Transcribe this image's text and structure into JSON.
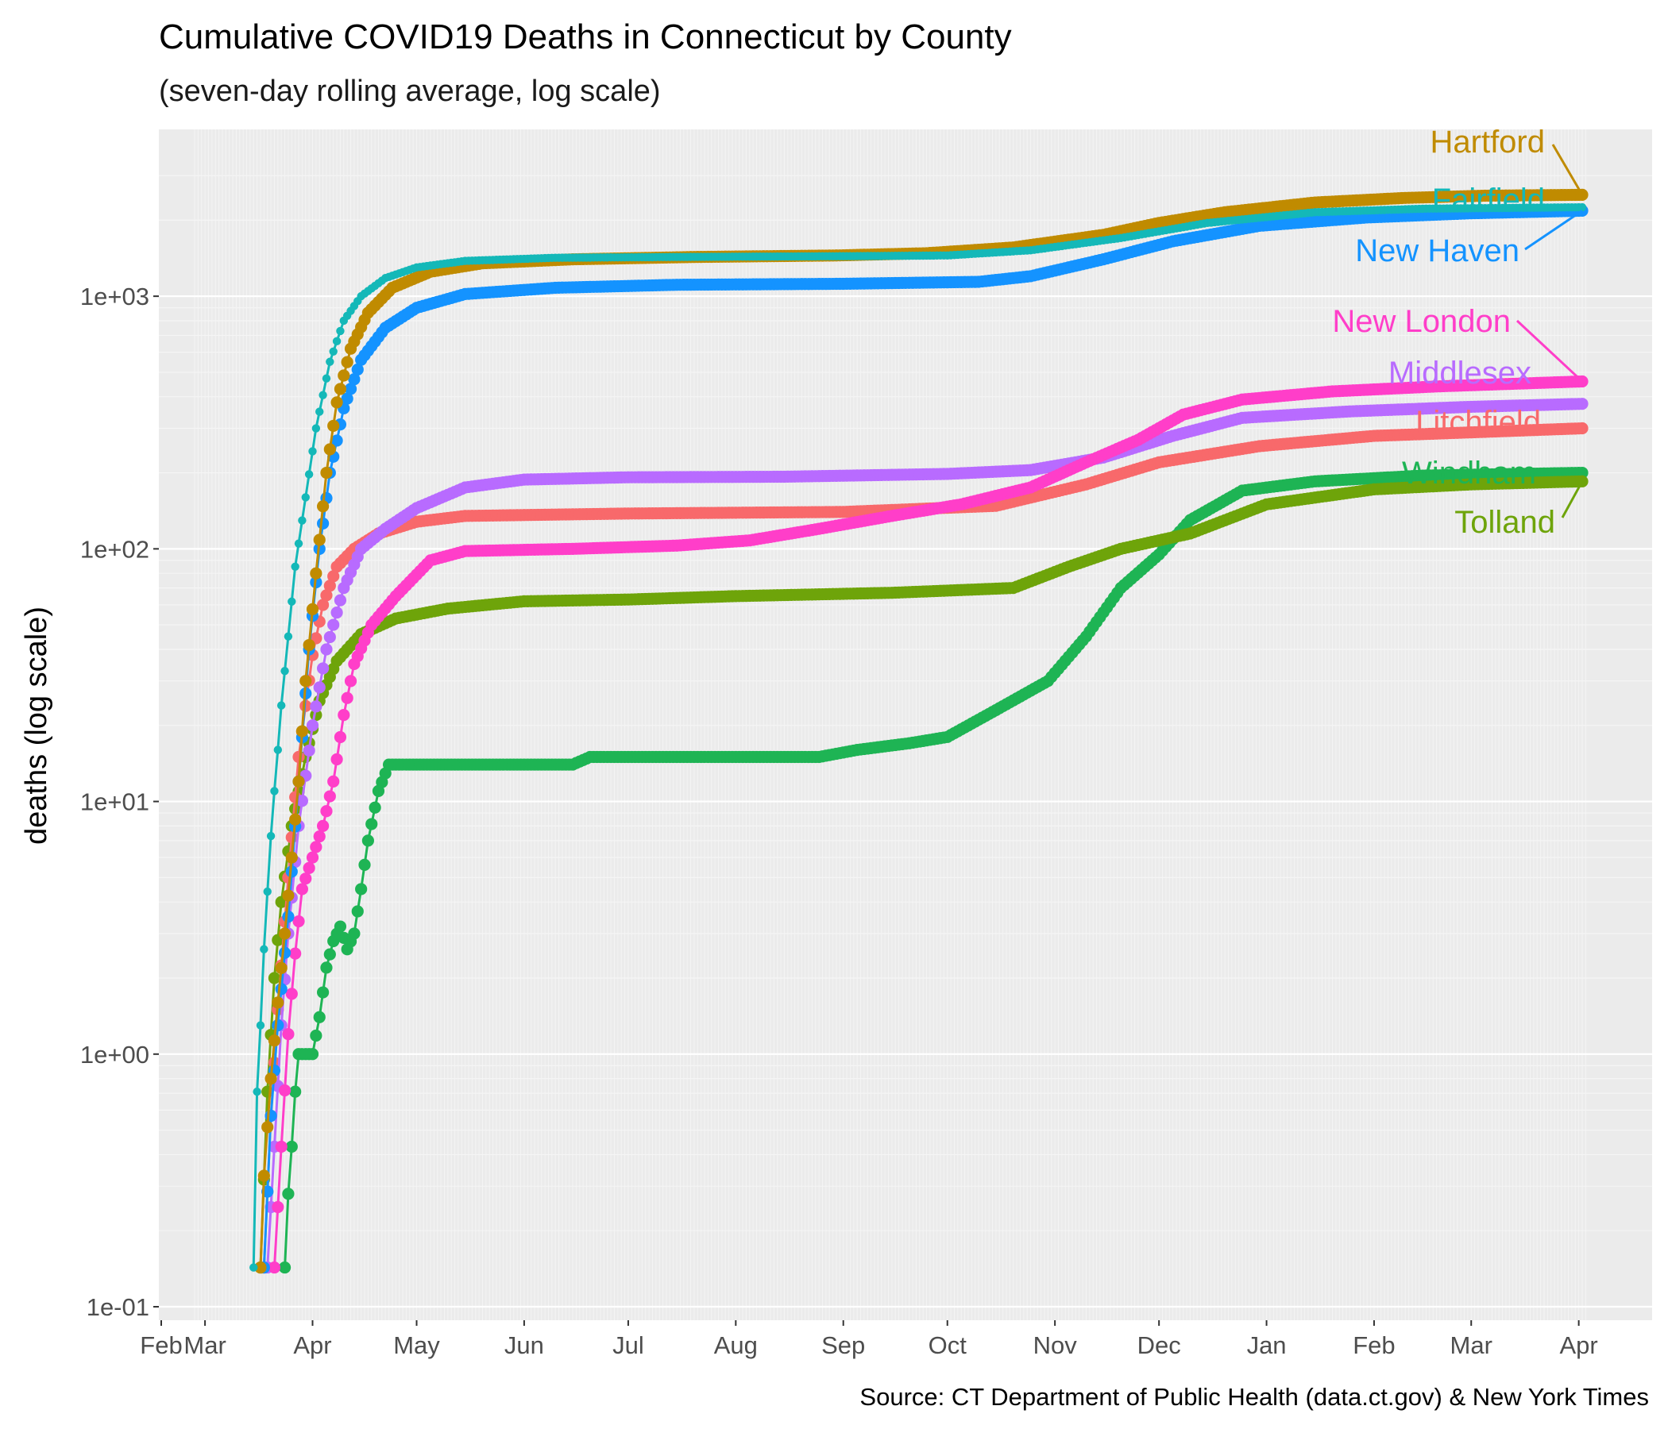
{
  "chart_data": {
    "type": "line",
    "title": "Cumulative COVID19 Deaths in Connecticut by County",
    "subtitle": "(seven-day rolling average, log scale)",
    "xlabel": "",
    "ylabel": "deaths (log scale)",
    "caption": "Source: CT Department of Public Health (data.ct.gov) & New York Times",
    "y_scale": "log10",
    "ylim": [
      0.1,
      3500
    ],
    "y_ticks": [
      "1e-01",
      "1e+00",
      "1e+01",
      "1e+02",
      "1e+03"
    ],
    "y_tick_values": [
      0.1,
      1,
      10,
      100,
      1000
    ],
    "x_range": [
      "2020-02-27",
      "2021-04-02"
    ],
    "x_tick_labels": [
      "Feb",
      "Mar",
      "Apr",
      "May",
      "Jun",
      "Jul",
      "Aug",
      "Sep",
      "Oct",
      "Nov",
      "Dec",
      "Jan",
      "Feb",
      "Mar",
      "Apr"
    ],
    "grid": true,
    "legend": "direct labels at right end",
    "series": [
      {
        "name": "Hartford",
        "color": "#C08B00",
        "marker_size": "large",
        "points": [
          [
            "2020-03-17",
            0.143
          ],
          [
            "2020-03-18",
            0.33
          ],
          [
            "2020-03-20",
            0.8
          ],
          [
            "2020-03-22",
            1.6
          ],
          [
            "2020-03-24",
            3.0
          ],
          [
            "2020-03-26",
            6.0
          ],
          [
            "2020-03-28",
            12
          ],
          [
            "2020-03-30",
            30
          ],
          [
            "2020-04-02",
            80
          ],
          [
            "2020-04-05",
            200
          ],
          [
            "2020-04-08",
            380
          ],
          [
            "2020-04-12",
            620
          ],
          [
            "2020-04-17",
            860
          ],
          [
            "2020-04-24",
            1080
          ],
          [
            "2020-05-05",
            1250
          ],
          [
            "2020-05-20",
            1350
          ],
          [
            "2020-06-15",
            1400
          ],
          [
            "2020-07-20",
            1430
          ],
          [
            "2020-08-30",
            1450
          ],
          [
            "2020-09-25",
            1480
          ],
          [
            "2020-10-20",
            1560
          ],
          [
            "2020-11-15",
            1750
          ],
          [
            "2020-12-01",
            1950
          ],
          [
            "2020-12-20",
            2150
          ],
          [
            "2021-01-15",
            2350
          ],
          [
            "2021-02-10",
            2450
          ],
          [
            "2021-03-05",
            2500
          ],
          [
            "2021-04-02",
            2520
          ]
        ]
      },
      {
        "name": "Fairfield",
        "color": "#14B8B8",
        "marker_size": "small",
        "points": [
          [
            "2020-03-15",
            0.143
          ],
          [
            "2020-03-16",
            0.71
          ],
          [
            "2020-03-17",
            1.3
          ],
          [
            "2020-03-18",
            2.6
          ],
          [
            "2020-03-19",
            4.4
          ],
          [
            "2020-03-20",
            7.3
          ],
          [
            "2020-03-21",
            11
          ],
          [
            "2020-03-22",
            16
          ],
          [
            "2020-03-23",
            24
          ],
          [
            "2020-03-25",
            45
          ],
          [
            "2020-03-27",
            85
          ],
          [
            "2020-03-30",
            160
          ],
          [
            "2020-04-02",
            300
          ],
          [
            "2020-04-06",
            550
          ],
          [
            "2020-04-10",
            800
          ],
          [
            "2020-04-15",
            1000
          ],
          [
            "2020-04-22",
            1180
          ],
          [
            "2020-05-01",
            1300
          ],
          [
            "2020-05-15",
            1380
          ],
          [
            "2020-06-10",
            1420
          ],
          [
            "2020-07-15",
            1430
          ],
          [
            "2020-09-01",
            1440
          ],
          [
            "2020-10-01",
            1450
          ],
          [
            "2020-10-25",
            1520
          ],
          [
            "2020-11-20",
            1700
          ],
          [
            "2020-12-15",
            1950
          ],
          [
            "2021-01-15",
            2150
          ],
          [
            "2021-02-15",
            2220
          ],
          [
            "2021-04-02",
            2250
          ]
        ]
      },
      {
        "name": "New Haven",
        "color": "#1493FF",
        "marker_size": "large",
        "points": [
          [
            "2020-03-18",
            0.143
          ],
          [
            "2020-03-20",
            0.57
          ],
          [
            "2020-03-22",
            1.3
          ],
          [
            "2020-03-25",
            3.5
          ],
          [
            "2020-03-28",
            12
          ],
          [
            "2020-03-31",
            40
          ],
          [
            "2020-04-03",
            100
          ],
          [
            "2020-04-06",
            200
          ],
          [
            "2020-04-10",
            360
          ],
          [
            "2020-04-15",
            560
          ],
          [
            "2020-04-22",
            750
          ],
          [
            "2020-05-01",
            900
          ],
          [
            "2020-05-15",
            1020
          ],
          [
            "2020-06-10",
            1080
          ],
          [
            "2020-07-15",
            1110
          ],
          [
            "2020-09-01",
            1120
          ],
          [
            "2020-10-10",
            1140
          ],
          [
            "2020-10-25",
            1200
          ],
          [
            "2020-11-15",
            1400
          ],
          [
            "2020-12-05",
            1650
          ],
          [
            "2020-12-30",
            1900
          ],
          [
            "2021-01-30",
            2050
          ],
          [
            "2021-03-01",
            2130
          ],
          [
            "2021-04-02",
            2180
          ]
        ]
      },
      {
        "name": "New London",
        "color": "#FF3EC9",
        "marker_size": "large",
        "points": [
          [
            "2020-03-21",
            0.143
          ],
          [
            "2020-03-23",
            0.43
          ],
          [
            "2020-03-25",
            1.2
          ],
          [
            "2020-03-27",
            2.5
          ],
          [
            "2020-03-29",
            4.5
          ],
          [
            "2020-04-01",
            6.0
          ],
          [
            "2020-04-04",
            8.0
          ],
          [
            "2020-04-07",
            12
          ],
          [
            "2020-04-10",
            22
          ],
          [
            "2020-04-13",
            35
          ],
          [
            "2020-04-18",
            50
          ],
          [
            "2020-04-25",
            65
          ],
          [
            "2020-05-05",
            90
          ],
          [
            "2020-05-15",
            98
          ],
          [
            "2020-06-15",
            100
          ],
          [
            "2020-07-15",
            103
          ],
          [
            "2020-08-05",
            108
          ],
          [
            "2020-08-25",
            120
          ],
          [
            "2020-09-15",
            135
          ],
          [
            "2020-10-05",
            150
          ],
          [
            "2020-10-25",
            175
          ],
          [
            "2020-11-10",
            220
          ],
          [
            "2020-11-25",
            270
          ],
          [
            "2020-12-08",
            340
          ],
          [
            "2020-12-25",
            390
          ],
          [
            "2021-01-20",
            420
          ],
          [
            "2021-02-20",
            440
          ],
          [
            "2021-04-02",
            460
          ]
        ]
      },
      {
        "name": "Middlesex",
        "color": "#B86BFF",
        "marker_size": "large",
        "points": [
          [
            "2020-03-19",
            0.143
          ],
          [
            "2020-03-21",
            0.43
          ],
          [
            "2020-03-23",
            1.3
          ],
          [
            "2020-03-25",
            3.0
          ],
          [
            "2020-03-28",
            8.0
          ],
          [
            "2020-04-01",
            20
          ],
          [
            "2020-04-05",
            40
          ],
          [
            "2020-04-10",
            70
          ],
          [
            "2020-04-15",
            100
          ],
          [
            "2020-04-22",
            120
          ],
          [
            "2020-05-01",
            145
          ],
          [
            "2020-05-15",
            175
          ],
          [
            "2020-06-01",
            188
          ],
          [
            "2020-07-01",
            192
          ],
          [
            "2020-08-15",
            193
          ],
          [
            "2020-10-01",
            198
          ],
          [
            "2020-10-25",
            205
          ],
          [
            "2020-11-15",
            230
          ],
          [
            "2020-12-05",
            280
          ],
          [
            "2020-12-25",
            330
          ],
          [
            "2021-01-25",
            350
          ],
          [
            "2021-03-01",
            365
          ],
          [
            "2021-04-02",
            375
          ]
        ]
      },
      {
        "name": "Litchfield",
        "color": "#F8696B",
        "marker_size": "large",
        "points": [
          [
            "2020-03-18",
            0.143
          ],
          [
            "2020-03-20",
            0.57
          ],
          [
            "2020-03-22",
            1.5
          ],
          [
            "2020-03-25",
            5.0
          ],
          [
            "2020-03-28",
            15
          ],
          [
            "2020-04-01",
            38
          ],
          [
            "2020-04-04",
            60
          ],
          [
            "2020-04-08",
            85
          ],
          [
            "2020-04-13",
            100
          ],
          [
            "2020-04-20",
            115
          ],
          [
            "2020-05-01",
            128
          ],
          [
            "2020-05-15",
            135
          ],
          [
            "2020-07-01",
            138
          ],
          [
            "2020-09-01",
            140
          ],
          [
            "2020-10-15",
            148
          ],
          [
            "2020-11-10",
            180
          ],
          [
            "2020-12-01",
            220
          ],
          [
            "2020-12-30",
            255
          ],
          [
            "2021-02-01",
            280
          ],
          [
            "2021-04-02",
            300
          ]
        ]
      },
      {
        "name": "Windham",
        "color": "#1EB454",
        "marker_size": "large",
        "points": [
          [
            "2020-03-24",
            0.143
          ],
          [
            "2020-03-25",
            0.28
          ],
          [
            "2020-03-26",
            0.43
          ],
          [
            "2020-03-27",
            0.71
          ],
          [
            "2020-03-28",
            1.0
          ],
          [
            "2020-04-01",
            1.0
          ],
          [
            "2020-04-03",
            1.4
          ],
          [
            "2020-04-05",
            2.2
          ],
          [
            "2020-04-07",
            2.8
          ],
          [
            "2020-04-09",
            3.2
          ],
          [
            "2020-04-11",
            2.6
          ],
          [
            "2020-04-13",
            3.0
          ],
          [
            "2020-04-15",
            4.5
          ],
          [
            "2020-04-17",
            7.0
          ],
          [
            "2020-04-20",
            11
          ],
          [
            "2020-04-23",
            14
          ],
          [
            "2020-05-15",
            14
          ],
          [
            "2020-06-15",
            14
          ],
          [
            "2020-06-20",
            15
          ],
          [
            "2020-08-25",
            15
          ],
          [
            "2020-09-05",
            16
          ],
          [
            "2020-09-20",
            17
          ],
          [
            "2020-10-01",
            18
          ],
          [
            "2020-10-15",
            23
          ],
          [
            "2020-10-30",
            30
          ],
          [
            "2020-11-10",
            45
          ],
          [
            "2020-11-20",
            70
          ],
          [
            "2020-12-01",
            95
          ],
          [
            "2020-12-10",
            130
          ],
          [
            "2020-12-25",
            170
          ],
          [
            "2021-01-15",
            185
          ],
          [
            "2021-02-15",
            195
          ],
          [
            "2021-04-02",
            200
          ]
        ]
      },
      {
        "name": "Tolland",
        "color": "#6EA40A",
        "marker_size": "large",
        "points": [
          [
            "2020-03-17",
            0.143
          ],
          [
            "2020-03-19",
            0.71
          ],
          [
            "2020-03-21",
            2.0
          ],
          [
            "2020-03-23",
            4.0
          ],
          [
            "2020-03-26",
            8.0
          ],
          [
            "2020-03-30",
            15
          ],
          [
            "2020-04-03",
            25
          ],
          [
            "2020-04-08",
            36
          ],
          [
            "2020-04-15",
            46
          ],
          [
            "2020-04-25",
            53
          ],
          [
            "2020-05-10",
            58
          ],
          [
            "2020-06-01",
            62
          ],
          [
            "2020-07-01",
            63
          ],
          [
            "2020-08-01",
            65
          ],
          [
            "2020-09-15",
            67
          ],
          [
            "2020-10-20",
            70
          ],
          [
            "2020-11-05",
            85
          ],
          [
            "2020-11-20",
            100
          ],
          [
            "2020-12-10",
            115
          ],
          [
            "2021-01-01",
            150
          ],
          [
            "2021-02-01",
            172
          ],
          [
            "2021-03-01",
            180
          ],
          [
            "2021-04-02",
            185
          ]
        ]
      }
    ]
  }
}
